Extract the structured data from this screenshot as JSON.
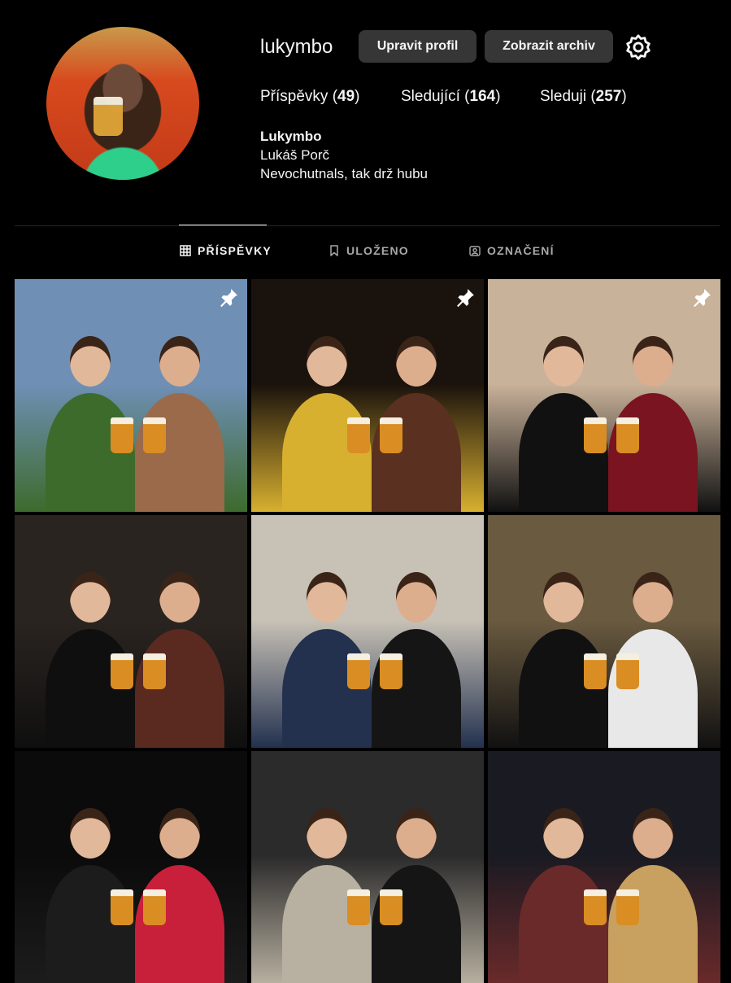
{
  "profile": {
    "username": "lukymbo",
    "edit_label": "Upravit profil",
    "archive_label": "Zobrazit archiv",
    "display_name": "Lukymbo",
    "full_name": "Lukáš Porč",
    "bio": "Nevochutnals, tak drž hubu"
  },
  "stats": {
    "posts_label": "Příspěvky",
    "posts_count": "49",
    "followers_label": "Sledující",
    "followers_count": "164",
    "following_label": "Sleduji",
    "following_count": "257"
  },
  "tabs": [
    {
      "label": "PŘÍSPĚVKY",
      "icon": "grid-icon",
      "active": true
    },
    {
      "label": "ULOŽENO",
      "icon": "bookmark-icon",
      "active": false
    },
    {
      "label": "OZNAČENÍ",
      "icon": "tagged-icon",
      "active": false
    }
  ],
  "posts": [
    {
      "pinned": true,
      "palette": [
        "#6f8fb5",
        "#3d6b2c",
        "#9a6a4a"
      ]
    },
    {
      "pinned": true,
      "palette": [
        "#1a120c",
        "#d8b030",
        "#5a3020"
      ]
    },
    {
      "pinned": true,
      "palette": [
        "#c9b29a",
        "#111111",
        "#7a1420"
      ]
    },
    {
      "pinned": false,
      "palette": [
        "#2a2420",
        "#0f0f0f",
        "#5a2a20"
      ]
    },
    {
      "pinned": false,
      "palette": [
        "#c8c2b6",
        "#23314f",
        "#151515"
      ]
    },
    {
      "pinned": false,
      "palette": [
        "#6a5a40",
        "#111111",
        "#e8e8e8"
      ]
    },
    {
      "pinned": false,
      "palette": [
        "#0b0b0b",
        "#1c1c1c",
        "#c8203a"
      ]
    },
    {
      "pinned": false,
      "palette": [
        "#2b2b2b",
        "#b8b0a0",
        "#151515"
      ]
    },
    {
      "pinned": false,
      "palette": [
        "#1a1a22",
        "#6a2a2a",
        "#c8a060"
      ]
    }
  ]
}
